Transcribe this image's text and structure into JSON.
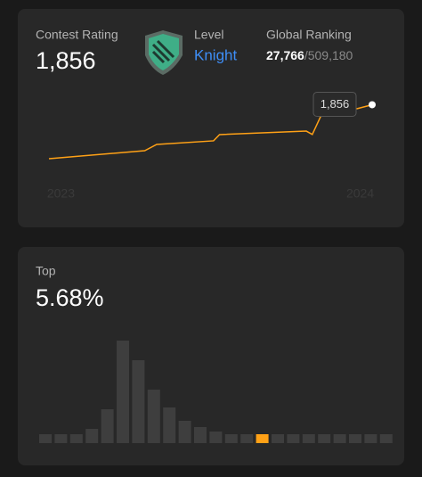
{
  "rating_card": {
    "label": "Contest Rating",
    "value": "1,856",
    "level_label": "Level",
    "level": "Knight",
    "ranking_label": "Global Ranking",
    "rank": "27,766",
    "total": "/509,180"
  },
  "top_card": {
    "label": "Top",
    "value": "5.68%"
  },
  "chart_data": [
    {
      "type": "line",
      "color": "#ffa116",
      "x": [
        2022.96,
        2023.28,
        2023.32,
        2023.51,
        2023.53,
        2023.82,
        2023.84,
        2023.88,
        2023.99,
        2024.04
      ],
      "values": [
        1500,
        1553,
        1594,
        1618,
        1659,
        1682,
        1660,
        1830,
        1830,
        1856
      ],
      "xlim": [
        2022.96,
        2024.04
      ],
      "xticks": [
        2023,
        2024
      ],
      "ylim": [
        1400,
        1900
      ],
      "tooltip": "1,856"
    },
    {
      "type": "bar",
      "color": "#3e3e3e",
      "highlight_color": "#ffa116",
      "highlight_index": 14,
      "values": [
        10,
        10,
        10,
        16,
        38,
        115,
        93,
        60,
        40,
        25,
        18,
        13,
        10,
        10,
        10,
        10,
        10,
        10,
        10,
        10,
        10,
        10,
        10
      ],
      "ylim": [
        0,
        120
      ]
    }
  ]
}
